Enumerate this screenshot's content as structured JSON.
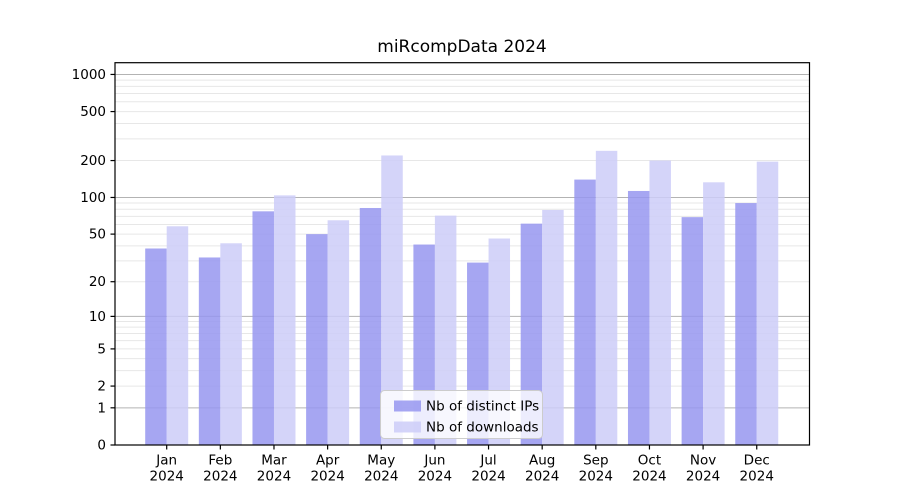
{
  "figure": {
    "background": "#ffffff"
  },
  "chart_data": {
    "type": "bar",
    "title": "miRcompData 2024",
    "categories": [
      "Jan",
      "Feb",
      "Mar",
      "Apr",
      "May",
      "Jun",
      "Jul",
      "Aug",
      "Sep",
      "Oct",
      "Nov",
      "Dec"
    ],
    "category_year": "2024",
    "series": [
      {
        "name": "Nb of distinct IPs",
        "color": "rgba(150,150,240,0.85)",
        "values": [
          38,
          32,
          77,
          50,
          82,
          41,
          29,
          61,
          140,
          113,
          69,
          90
        ]
      },
      {
        "name": "Nb of downloads",
        "color": "rgba(205,205,248,0.85)",
        "values": [
          58,
          42,
          104,
          65,
          220,
          71,
          46,
          79,
          240,
          200,
          133,
          196
        ]
      }
    ],
    "xlabel": "",
    "ylabel": "",
    "yscale": "log1p",
    "ylim": [
      0,
      1250
    ],
    "ytick_values": [
      0,
      1,
      2,
      5,
      10,
      20,
      50,
      100,
      200,
      500,
      1000
    ],
    "ytick_labels": [
      "0",
      "1",
      "2",
      "5",
      "10",
      "20",
      "50",
      "100",
      "200",
      "500",
      "1000"
    ],
    "grid": {
      "major_values": [
        1,
        10,
        100,
        1000
      ],
      "major_color": "#b3b3b3",
      "minor_color": "#e7e7e7",
      "on": true
    },
    "legend": {
      "position": "lower center",
      "labels": [
        "Nb of distinct IPs",
        "Nb of downloads"
      ]
    },
    "axis_color": "#000000"
  }
}
